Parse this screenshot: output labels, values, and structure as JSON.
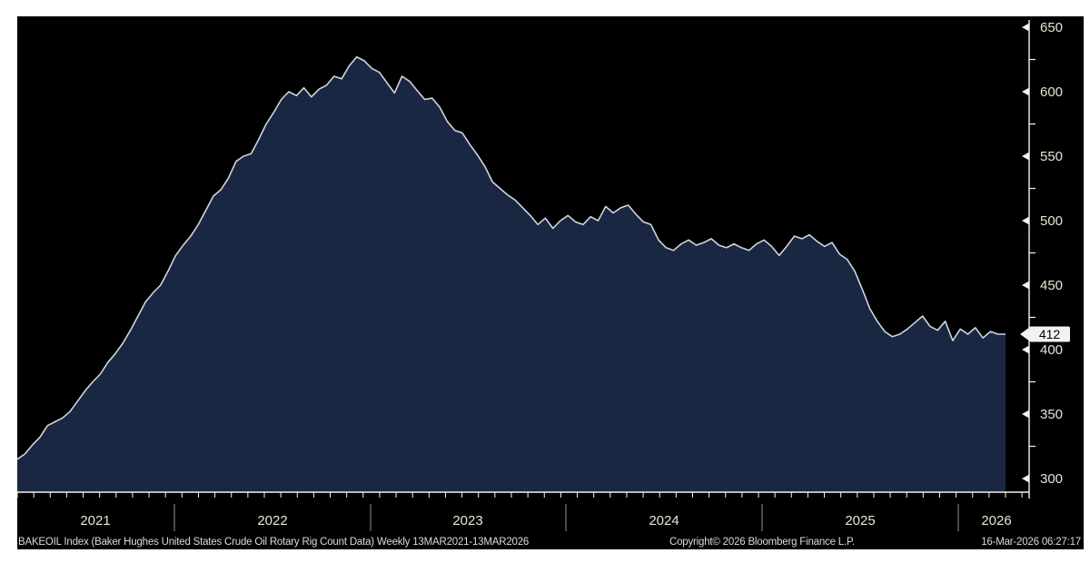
{
  "chart_data": {
    "type": "area",
    "series_name": "BAKEOIL Index (Baker Hughes United States Crude Oil Rotary Rig Count Data)",
    "frequency": "Weekly",
    "date_range_start": "13MAR2021",
    "date_range_end": "13MAR2026",
    "x_year_labels": [
      "2021",
      "2022",
      "2023",
      "2024",
      "2025",
      "2026"
    ],
    "y_ticks": [
      650,
      600,
      550,
      500,
      450,
      400,
      350,
      300
    ],
    "y_minor_ticks": [
      625,
      575,
      525,
      475,
      425,
      375,
      325
    ],
    "ylim": [
      289,
      656
    ],
    "grid": false,
    "legend_position": "none",
    "last_value": 412,
    "values": [
      315,
      319,
      326,
      332,
      341,
      344,
      347,
      352,
      360,
      368,
      375,
      381,
      390,
      397,
      405,
      415,
      426,
      437,
      444,
      450,
      461,
      473,
      481,
      488,
      497,
      508,
      519,
      524,
      533,
      546,
      550,
      552,
      563,
      575,
      584,
      594,
      600,
      597,
      603,
      596,
      602,
      605,
      612,
      610,
      620,
      627,
      624,
      618,
      615,
      607,
      599,
      612,
      608,
      601,
      594,
      595,
      588,
      577,
      570,
      568,
      559,
      551,
      542,
      530,
      525,
      520,
      516,
      510,
      504,
      497,
      502,
      494,
      500,
      504,
      499,
      497,
      503,
      500,
      511,
      506,
      510,
      512,
      505,
      499,
      497,
      485,
      479,
      477,
      482,
      485,
      481,
      483,
      486,
      481,
      479,
      482,
      479,
      477,
      482,
      485,
      480,
      473,
      480,
      488,
      486,
      489,
      484,
      480,
      483,
      474,
      470,
      461,
      447,
      432,
      422,
      414,
      410,
      412,
      416,
      421,
      426,
      418,
      415,
      422,
      407,
      416,
      412,
      417,
      409,
      414,
      412,
      412
    ]
  },
  "badge": {
    "value": "412"
  },
  "footer": {
    "description": "BAKEOIL Index (Baker Hughes United States Crude Oil Rotary Rig Count Data) Weekly 13MAR2021-13MAR2026",
    "copyright": "Copyright© 2026 Bloomberg Finance L.P.",
    "timestamp": "16-Mar-2026 06:27:17"
  },
  "colors": {
    "page_bg": "#ffffff",
    "terminal_bg": "#000000",
    "area_fill": "#1a2742",
    "line": "#cdd6e0",
    "axis": "#f2f2f2",
    "tick_label": "#e9e4d5",
    "year_separator": "#7a7a7a",
    "footer_text": "#dedad0",
    "badge_bg": "#f2f2f2",
    "badge_text": "#000000"
  }
}
